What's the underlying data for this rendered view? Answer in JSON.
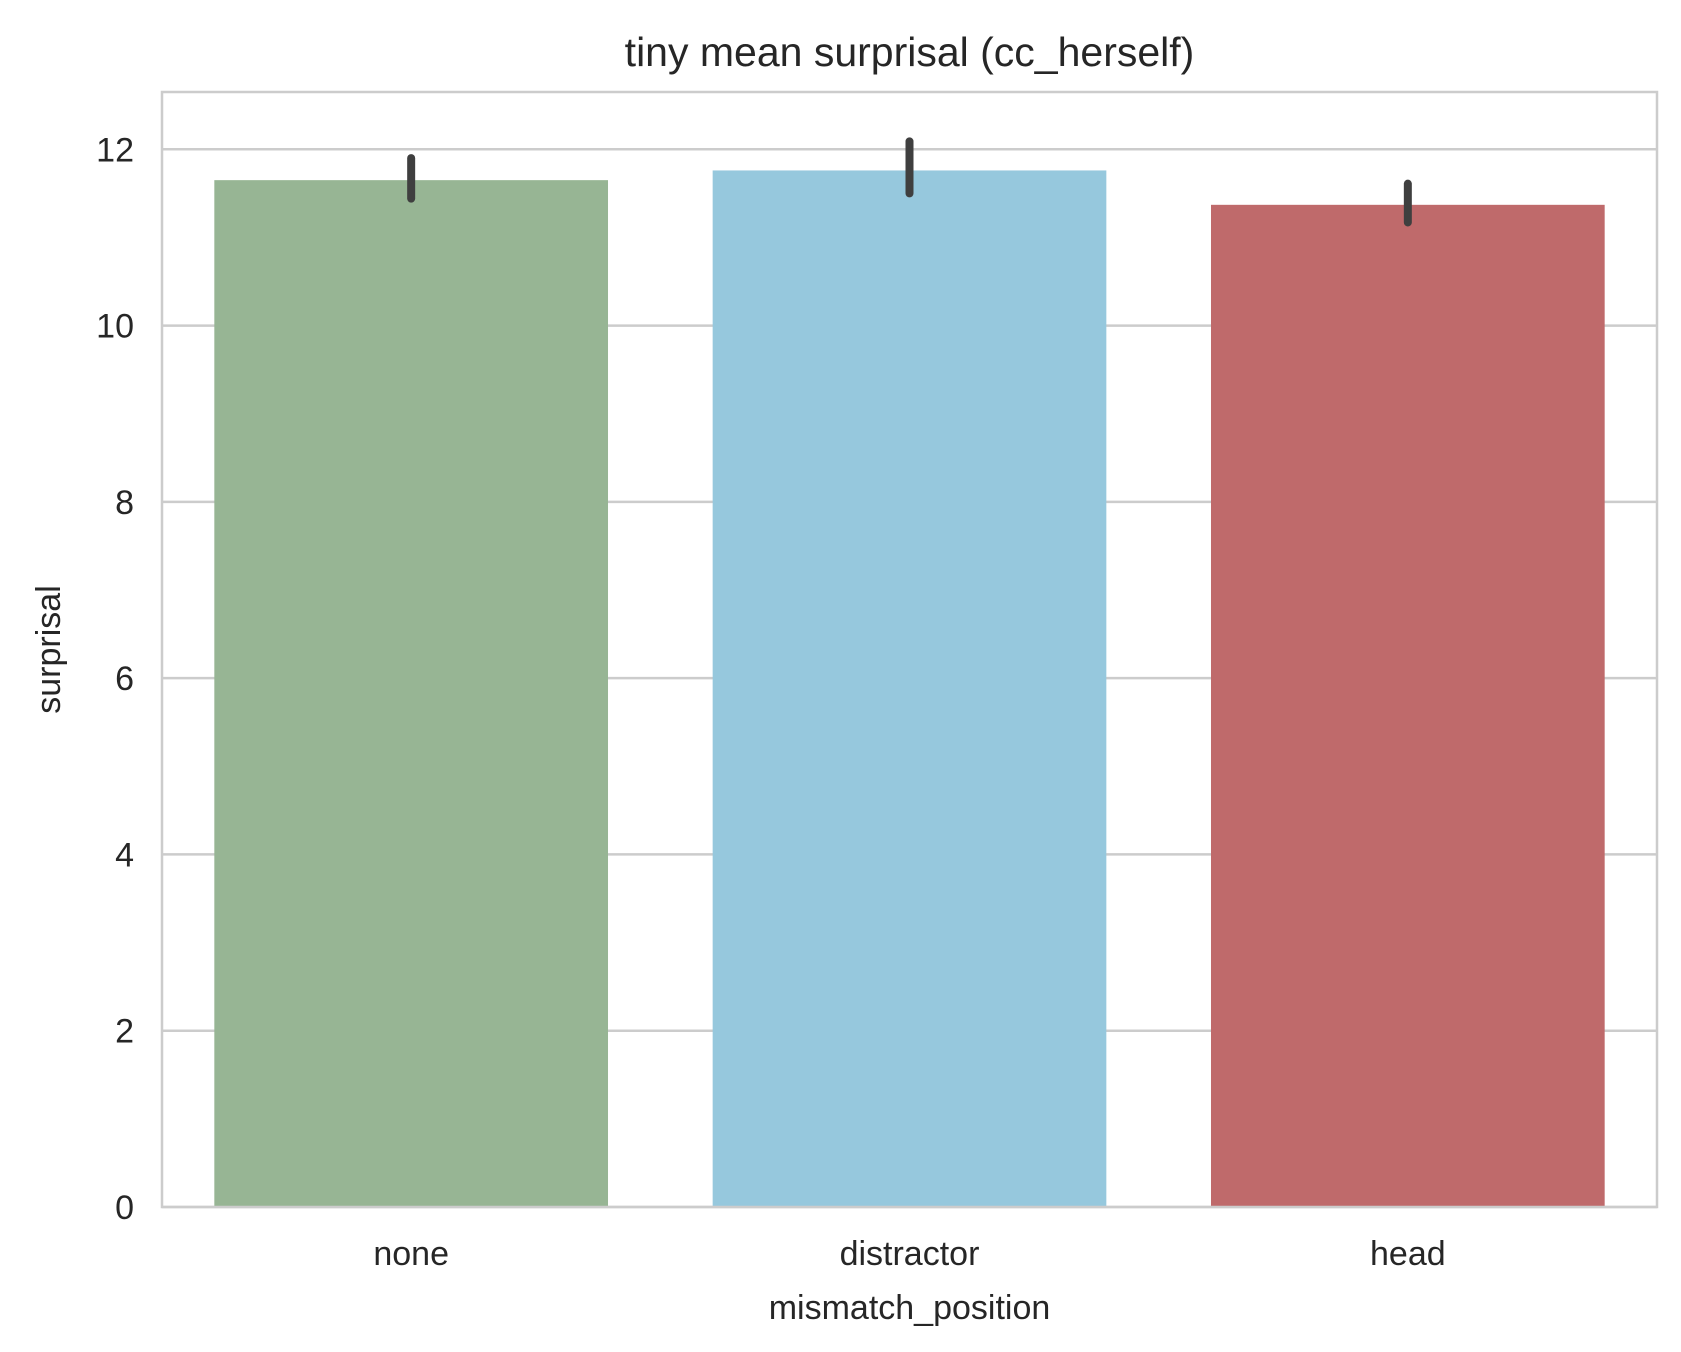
{
  "chart_data": {
    "type": "bar",
    "title": "tiny mean surprisal (cc_herself)",
    "xlabel": "mismatch_position",
    "ylabel": "surprisal",
    "categories": [
      "none",
      "distractor",
      "head"
    ],
    "values": [
      11.65,
      11.76,
      11.37
    ],
    "error_bars": [
      [
        11.44,
        11.9
      ],
      [
        11.5,
        12.09
      ],
      [
        11.17,
        11.61
      ]
    ],
    "colors": [
      "#97b594",
      "#96c8dd",
      "#bf6a6b"
    ],
    "error_bar_color": "#3f3f3f",
    "ylim": [
      0,
      12.65
    ],
    "yticks": [
      0,
      2,
      4,
      6,
      8,
      10,
      12
    ],
    "grid": true,
    "legend": "none"
  }
}
